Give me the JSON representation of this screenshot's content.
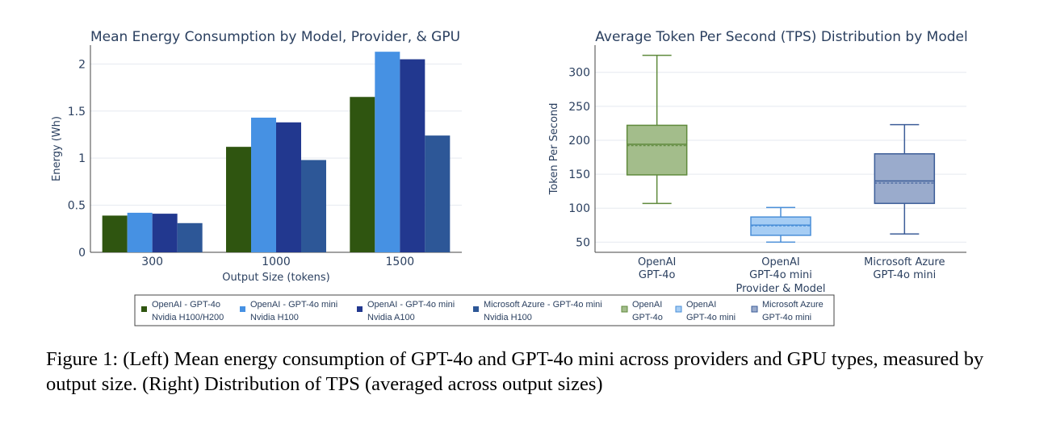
{
  "chart_data": [
    {
      "type": "bar",
      "title": "Mean Energy Consumption by Model, Provider, & GPU",
      "xlabel": "Output Size (tokens)",
      "ylabel": "Energy (Wh)",
      "categories": [
        "300",
        "1000",
        "1500"
      ],
      "ylim": [
        0,
        2.2
      ],
      "yticks": [
        "0",
        "0.5",
        "1",
        "1.5",
        "2"
      ],
      "grid": true,
      "series": [
        {
          "name": "OpenAI - GPT-4o",
          "name2": "Nvidia H100/H200",
          "color": "#2f5510",
          "values": [
            0.39,
            1.12,
            1.65
          ]
        },
        {
          "name": "OpenAI - GPT-4o mini",
          "name2": "Nvidia H100",
          "color": "#4691e3",
          "values": [
            0.42,
            1.43,
            2.13
          ]
        },
        {
          "name": "OpenAI - GPT-4o mini",
          "name2": "Nvidia A100",
          "color": "#22388f",
          "values": [
            0.41,
            1.38,
            2.05
          ]
        },
        {
          "name": "Microsoft Azure - GPT-4o mini",
          "name2": "Nvidia H100",
          "color": "#2d5797",
          "values": [
            0.31,
            0.98,
            1.24
          ]
        }
      ]
    },
    {
      "type": "box",
      "title": "Average Token Per Second (TPS) Distribution by Model",
      "xlabel": "Provider & Model",
      "ylabel": "Token Per Second",
      "ylim": [
        35,
        340
      ],
      "yticks": [
        "50",
        "100",
        "150",
        "200",
        "250",
        "300"
      ],
      "grid": true,
      "boxes": [
        {
          "label1": "OpenAI",
          "label2": "GPT-4o",
          "min": 107,
          "q1": 149,
          "median": 194,
          "mean": 192,
          "q3": 222,
          "max": 325,
          "fill": "#a3bd8b",
          "stroke": "#5f8a3c"
        },
        {
          "label1": "OpenAI",
          "label2": "GPT-4o mini",
          "min": 50,
          "q1": 60,
          "median": 75,
          "mean": 74,
          "q3": 87,
          "max": 101,
          "fill": "#a6cdf4",
          "stroke": "#4a8fd8"
        },
        {
          "label1": "Microsoft Azure",
          "label2": "GPT-4o mini",
          "min": 62,
          "q1": 107,
          "median": 140,
          "mean": 137,
          "q3": 180,
          "max": 223,
          "fill": "#9aabcc",
          "stroke": "#3c5d98"
        }
      ]
    }
  ],
  "caption": "Figure 1: (Left) Mean energy consumption of GPT-4o and GPT-4o mini across providers and GPU types, measured by output size. (Right) Distribution of TPS (averaged across output sizes)"
}
